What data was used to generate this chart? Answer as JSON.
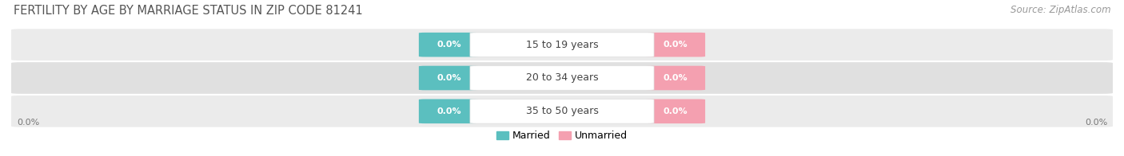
{
  "title": "FERTILITY BY AGE BY MARRIAGE STATUS IN ZIP CODE 81241",
  "source_text": "Source: ZipAtlas.com",
  "categories": [
    "15 to 19 years",
    "20 to 34 years",
    "35 to 50 years"
  ],
  "married_values": [
    0.0,
    0.0,
    0.0
  ],
  "unmarried_values": [
    0.0,
    0.0,
    0.0
  ],
  "married_color": "#5bbfbf",
  "unmarried_color": "#f4a0b0",
  "row_bg_light": "#ebebeb",
  "row_bg_dark": "#e0e0e0",
  "title_fontsize": 10.5,
  "source_fontsize": 8.5,
  "label_fontsize": 9,
  "value_fontsize": 8,
  "legend_married": "Married",
  "legend_unmarried": "Unmarried",
  "left_axis_label": "0.0%",
  "right_axis_label": "0.0%",
  "background_color": "#ffffff"
}
